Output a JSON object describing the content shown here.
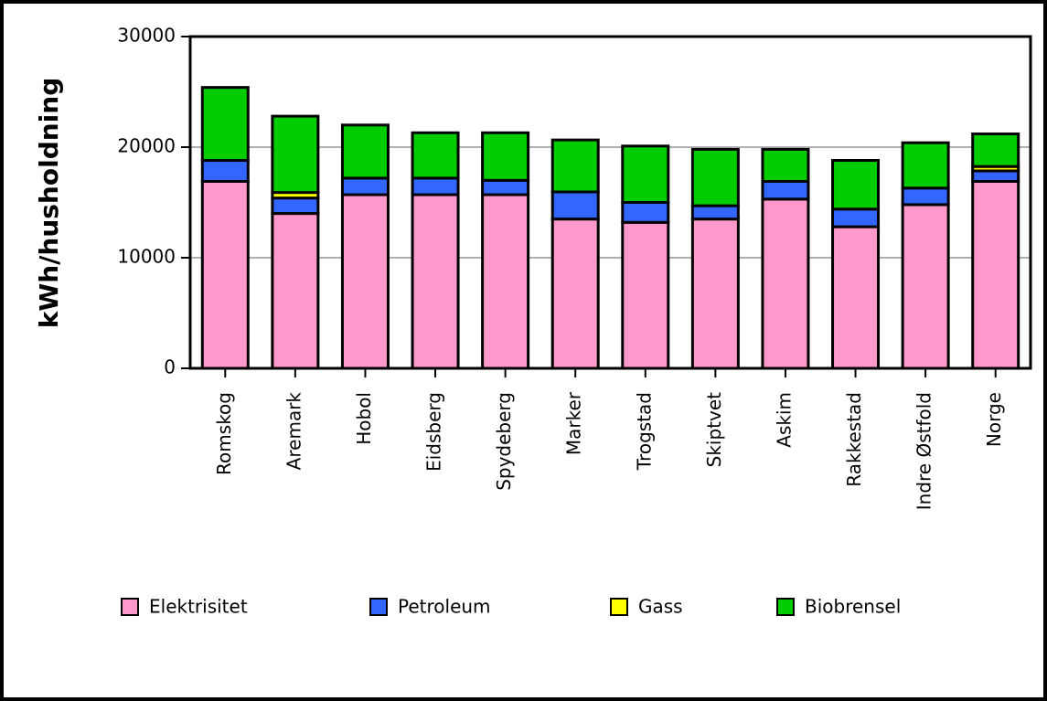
{
  "chart_data": {
    "type": "stacked_bar",
    "y_label": "kWh/husholdning",
    "categories": [
      "Romskog",
      "Aremark",
      "Hobol",
      "Eidsberg",
      "Spydeberg",
      "Marker",
      "Trogstad",
      "Skiptvet",
      "Askim",
      "Rakkestad",
      "Indre Østfold",
      "Norge"
    ],
    "series": [
      {
        "name": "Elektrisitet",
        "color": "#ff99cc",
        "values": [
          16900,
          14000,
          15700,
          15700,
          15700,
          13500,
          13200,
          13500,
          15300,
          12800,
          14800,
          16900
        ]
      },
      {
        "name": "Petroleum",
        "color": "#3366ff",
        "values": [
          1900,
          1400,
          1500,
          1500,
          1300,
          2450,
          1800,
          1200,
          1600,
          1600,
          1500,
          950
        ]
      },
      {
        "name": "Gass",
        "color": "#ffff00",
        "values": [
          0,
          500,
          0,
          0,
          0,
          0,
          0,
          0,
          0,
          0,
          0,
          400
        ]
      },
      {
        "name": "Biobrensel",
        "color": "#00cc00",
        "values": [
          6600,
          6900,
          4800,
          4100,
          4300,
          4700,
          5100,
          5100,
          2900,
          4400,
          4100,
          2950
        ]
      }
    ],
    "ylim": [
      0,
      30000
    ],
    "yticks": [
      0,
      10000,
      20000,
      30000
    ],
    "grid": true
  }
}
